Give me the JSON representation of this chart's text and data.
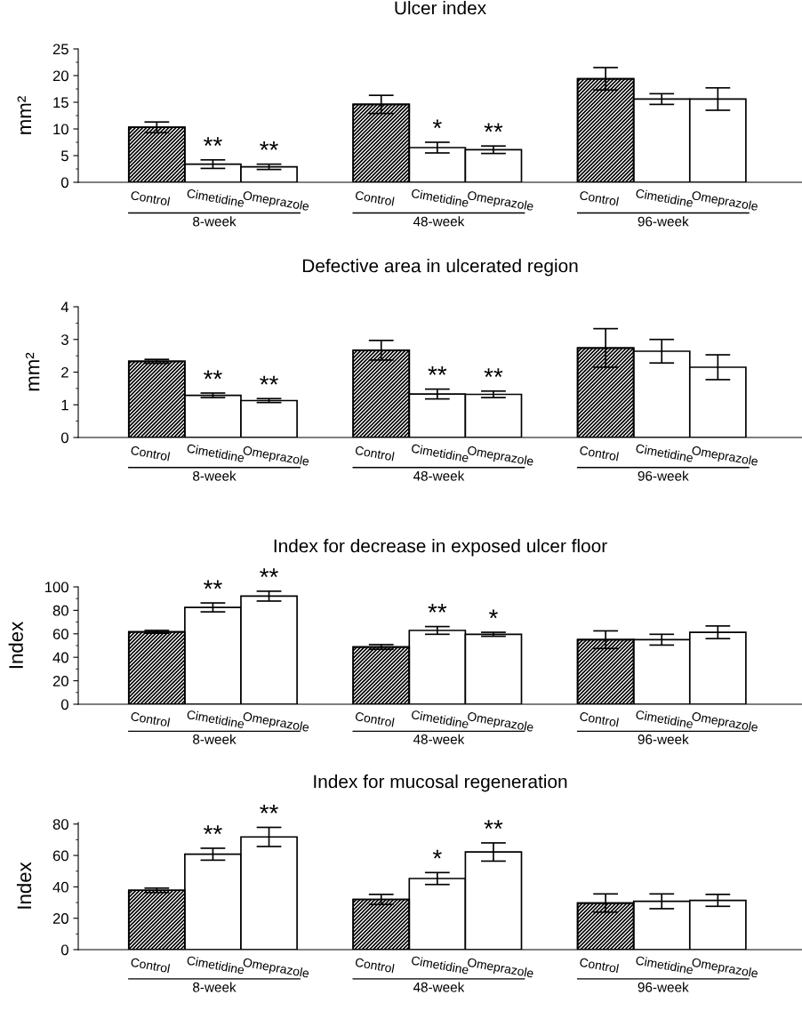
{
  "chart_data": [
    {
      "type": "bar",
      "title": "Ulcer index",
      "ylabel": "mm²",
      "categories": [
        "Control",
        "Cimetidine",
        "Omeprazole",
        null,
        "Control",
        "Cimetidine",
        "Omeprazole",
        null,
        "Control",
        "Cimetidine",
        "Omeprazole"
      ],
      "values": [
        10.3,
        3.4,
        2.9,
        null,
        14.6,
        6.5,
        6.1,
        null,
        19.4,
        15.6,
        15.6
      ],
      "errors": [
        1.0,
        0.8,
        0.5,
        null,
        1.7,
        1.0,
        0.7,
        null,
        2.1,
        1.0,
        2.1
      ],
      "value_labels": [
        null,
        "**",
        "**",
        null,
        null,
        "*",
        "**",
        null,
        null,
        null,
        null
      ],
      "colors": [
        "#000000",
        "#ffffff",
        "#ffffff",
        null,
        "#000000",
        "#ffffff",
        "#ffffff",
        null,
        "#000000",
        "#ffffff",
        "#ffffff"
      ],
      "ylim": [
        0,
        25
      ],
      "yticks": [
        0,
        5,
        10,
        15,
        20,
        25
      ],
      "grid": false,
      "legend": false,
      "annotations": [
        "8-week",
        "48-week",
        "96-week"
      ]
    },
    {
      "type": "bar",
      "title": "Defective area in ulcerated region",
      "ylabel": "mm²",
      "categories": [
        "Control",
        "Cimetidine",
        "Omeprazole",
        null,
        "Control",
        "Cimetidine",
        "Omeprazole",
        null,
        "Control",
        "Cimetidine",
        "Omeprazole"
      ],
      "values": [
        2.33,
        1.29,
        1.13,
        null,
        2.67,
        1.33,
        1.32,
        null,
        2.74,
        2.64,
        2.15
      ],
      "errors": [
        0.06,
        0.07,
        0.06,
        null,
        0.3,
        0.15,
        0.1,
        null,
        0.59,
        0.36,
        0.38
      ],
      "value_labels": [
        null,
        "**",
        "**",
        null,
        null,
        "**",
        "**",
        null,
        null,
        null,
        null
      ],
      "colors": [
        "#000000",
        "#ffffff",
        "#ffffff",
        null,
        "#000000",
        "#ffffff",
        "#ffffff",
        null,
        "#000000",
        "#ffffff",
        "#ffffff"
      ],
      "ylim": [
        0,
        4
      ],
      "yticks": [
        0,
        1,
        2,
        3,
        4
      ],
      "grid": false,
      "legend": false,
      "annotations": [
        "8-week",
        "48-week",
        "96-week"
      ]
    },
    {
      "type": "bar",
      "title": "Index for decrease in exposed ulcer floor",
      "ylabel": "Index",
      "categories": [
        "Control",
        "Cimetidine",
        "Omeprazole",
        null,
        "Control",
        "Cimetidine",
        "Omeprazole",
        null,
        "Control",
        "Cimetidine",
        "Omeprazole"
      ],
      "values": [
        61.7,
        82.5,
        92.1,
        null,
        48.8,
        62.9,
        59.6,
        null,
        55,
        55,
        61.3
      ],
      "errors": [
        1.2,
        3.8,
        4.2,
        null,
        2,
        3.3,
        1.7,
        null,
        7.5,
        4.6,
        5.4
      ],
      "value_labels": [
        null,
        "**",
        "**",
        null,
        null,
        "**",
        "*",
        null,
        null,
        null,
        null
      ],
      "colors": [
        "#000000",
        "#ffffff",
        "#ffffff",
        null,
        "#000000",
        "#ffffff",
        "#ffffff",
        null,
        "#000000",
        "#ffffff",
        "#ffffff"
      ],
      "ylim": [
        0,
        100
      ],
      "yticks": [
        0,
        20,
        40,
        60,
        80,
        100
      ],
      "grid": false,
      "legend": false,
      "annotations": [
        "8-week",
        "48-week",
        "96-week"
      ]
    },
    {
      "type": "bar",
      "title": "Index for mucosal regeneration",
      "ylabel": "Index",
      "categories": [
        "Control",
        "Cimetidine",
        "Omeprazole",
        null,
        "Control",
        "Cimetidine",
        "Omeprazole",
        null,
        "Control",
        "Cimetidine",
        "Omeprazole"
      ],
      "values": [
        37.8,
        60.8,
        71.8,
        null,
        32,
        45.3,
        62.2,
        null,
        29.7,
        30.8,
        31.4
      ],
      "errors": [
        1.4,
        3.8,
        6.1,
        null,
        3.2,
        3.8,
        5.8,
        null,
        5.8,
        4.7,
        3.8
      ],
      "value_labels": [
        null,
        "**",
        "**",
        null,
        null,
        "*",
        "**",
        null,
        null,
        null,
        null
      ],
      "colors": [
        "#000000",
        "#ffffff",
        "#ffffff",
        null,
        "#000000",
        "#ffffff",
        "#ffffff",
        null,
        "#000000",
        "#ffffff",
        "#ffffff"
      ],
      "ylim": [
        0,
        81
      ],
      "yticks": [
        0,
        20,
        40,
        60,
        80
      ],
      "grid": false,
      "legend": false,
      "annotations": [
        "8-week",
        "48-week",
        "96-week"
      ]
    }
  ]
}
